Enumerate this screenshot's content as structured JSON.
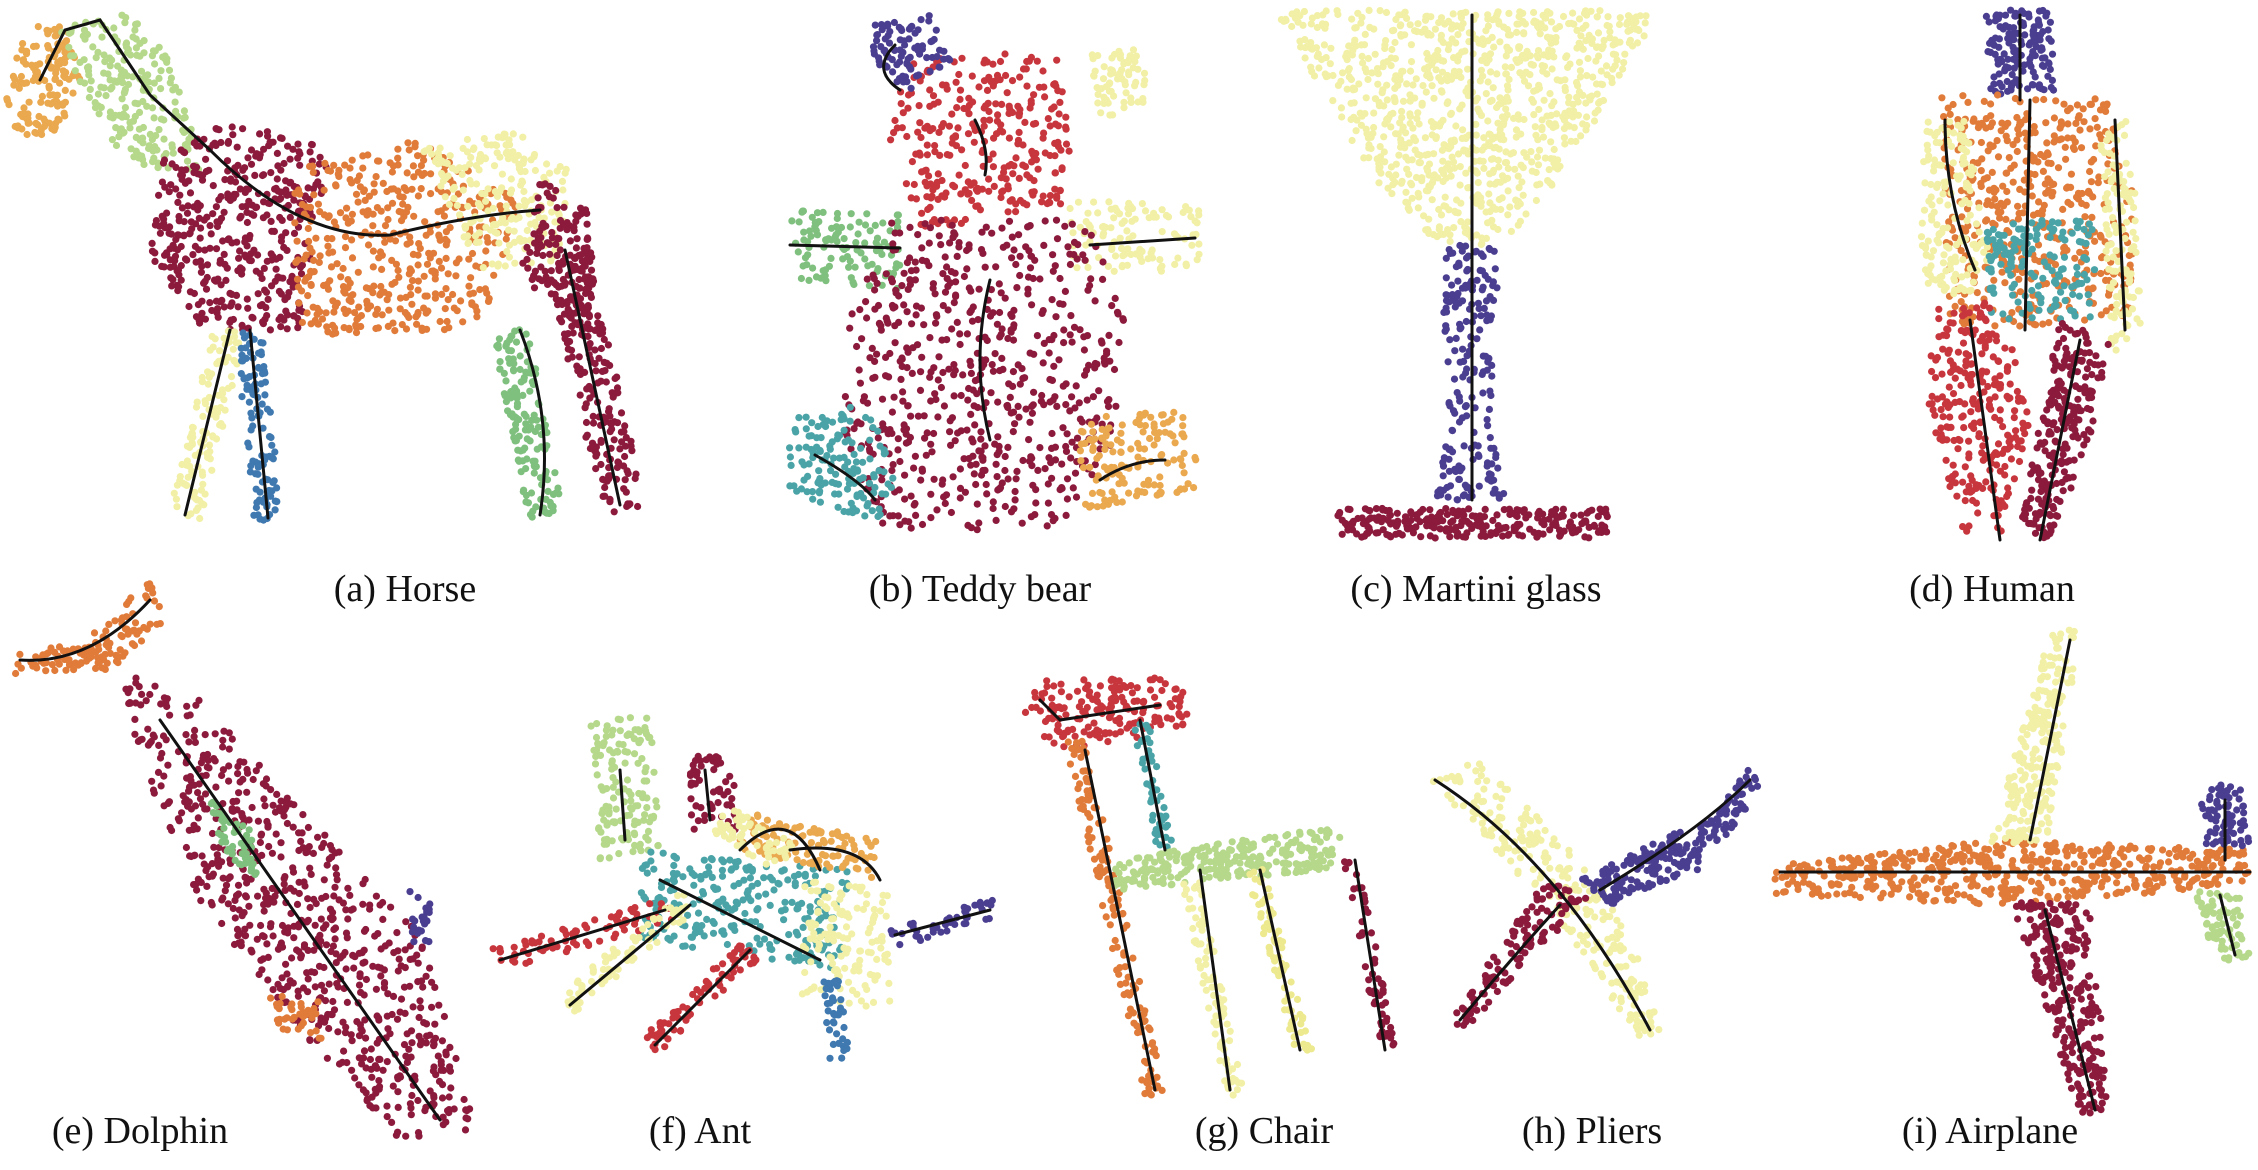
{
  "figure": {
    "panels": [
      {
        "id": "a",
        "caption": "(a) Horse"
      },
      {
        "id": "b",
        "caption": "(b) Teddy bear"
      },
      {
        "id": "c",
        "caption": "(c) Martini glass"
      },
      {
        "id": "d",
        "caption": "(d) Human"
      },
      {
        "id": "e",
        "caption": "(e) Dolphin"
      },
      {
        "id": "f",
        "caption": "(f) Ant"
      },
      {
        "id": "g",
        "caption": "(g) Chair"
      },
      {
        "id": "h",
        "caption": "(h) Pliers"
      },
      {
        "id": "i",
        "caption": "(i) Airplane"
      }
    ],
    "colors": {
      "dark_red": "#8b1a3c",
      "red": "#c8363d",
      "orange": "#e07b3a",
      "light_orange": "#eaa84f",
      "yellow": "#ede98f",
      "light_yellow": "#f2f0a6",
      "light_green": "#b5d88a",
      "green": "#7fc07e",
      "teal": "#4aa3a6",
      "blue": "#3f79b0",
      "purple": "#4a3e91",
      "skeleton": "#111111"
    }
  }
}
